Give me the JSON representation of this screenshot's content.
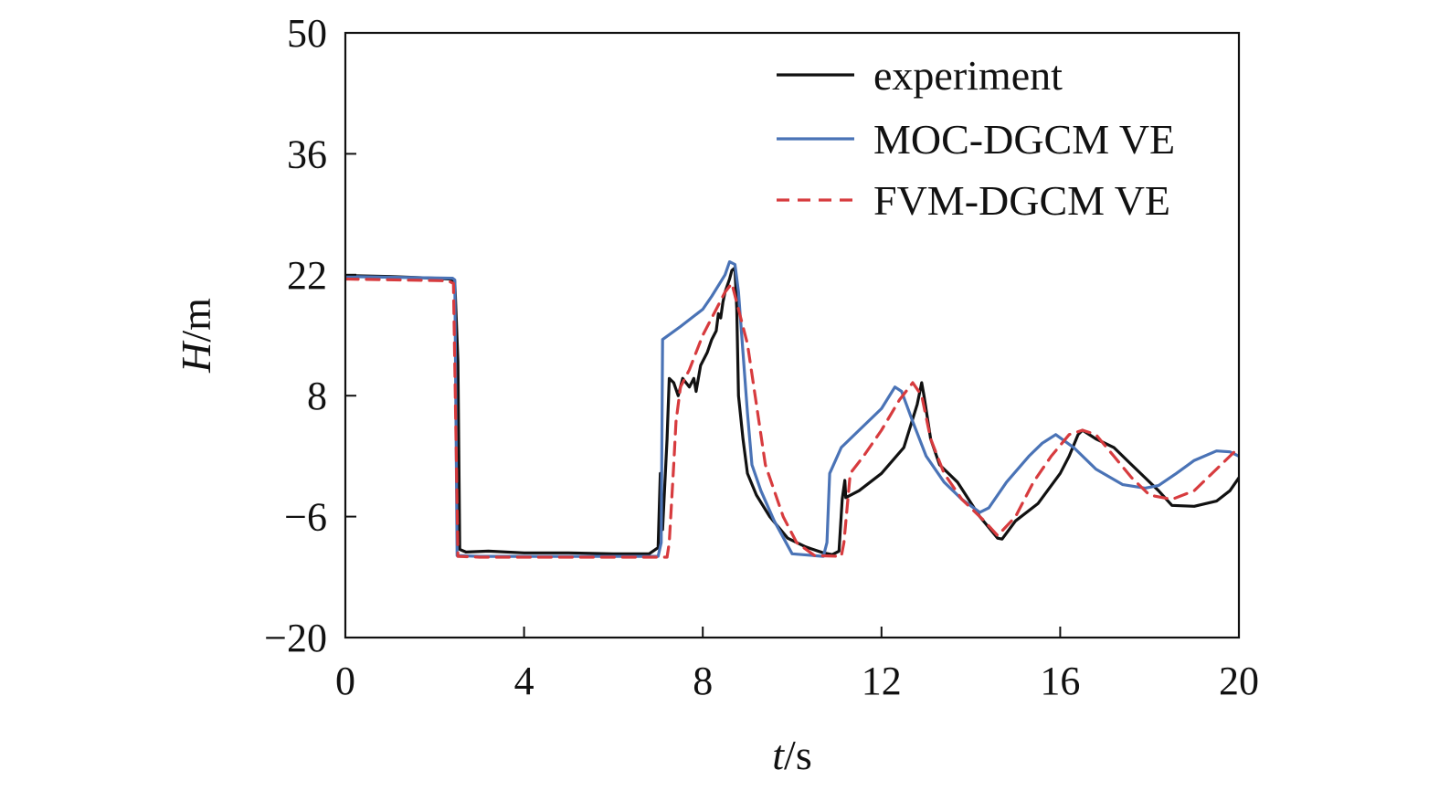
{
  "chart_data": {
    "type": "line",
    "xlabel": {
      "italic": "t",
      "rest": "/s"
    },
    "ylabel": {
      "italic": "H",
      "rest": "/m"
    },
    "xlim": [
      0,
      20
    ],
    "ylim": [
      -20,
      50
    ],
    "xticks": [
      0,
      4,
      8,
      12,
      16,
      20
    ],
    "yticks": [
      -20,
      -6,
      8,
      22,
      36,
      50
    ],
    "xtick_labels": [
      "0",
      "4",
      "8",
      "12",
      "16",
      "20"
    ],
    "ytick_labels": [
      "−20",
      "−6",
      "8",
      "22",
      "36",
      "50"
    ],
    "grid": false,
    "legend": "top-right",
    "series": [
      {
        "name": "experiment",
        "color": "#111111",
        "dash": "solid",
        "points": [
          [
            0,
            21.9
          ],
          [
            1,
            21.8
          ],
          [
            2,
            21.6
          ],
          [
            2.35,
            21.5
          ],
          [
            2.45,
            21.2
          ],
          [
            2.52,
            12
          ],
          [
            2.56,
            -9.8
          ],
          [
            2.7,
            -10.1
          ],
          [
            3.2,
            -10.0
          ],
          [
            4,
            -10.2
          ],
          [
            5,
            -10.2
          ],
          [
            6,
            -10.3
          ],
          [
            6.8,
            -10.3
          ],
          [
            7.0,
            -9.6
          ],
          [
            7.05,
            -1
          ],
          [
            7.1,
            -7.5
          ],
          [
            7.2,
            3
          ],
          [
            7.25,
            10.0
          ],
          [
            7.35,
            9.5
          ],
          [
            7.45,
            8.0
          ],
          [
            7.55,
            10.0
          ],
          [
            7.7,
            9
          ],
          [
            7.8,
            10.0
          ],
          [
            7.85,
            8.5
          ],
          [
            7.95,
            11.5
          ],
          [
            8.1,
            13
          ],
          [
            8.2,
            14.5
          ],
          [
            8.3,
            15.5
          ],
          [
            8.35,
            17.5
          ],
          [
            8.4,
            17
          ],
          [
            8.45,
            18.8
          ],
          [
            8.5,
            20
          ],
          [
            8.6,
            21.5
          ],
          [
            8.65,
            22.5
          ],
          [
            8.72,
            22.8
          ],
          [
            8.76,
            18
          ],
          [
            8.8,
            8
          ],
          [
            8.9,
            3
          ],
          [
            9.0,
            -1
          ],
          [
            9.2,
            -3.5
          ],
          [
            9.5,
            -6
          ],
          [
            9.9,
            -8.5
          ],
          [
            10.3,
            -9.5
          ],
          [
            10.7,
            -10.2
          ],
          [
            10.9,
            -10.4
          ],
          [
            11.05,
            -10.0
          ],
          [
            11.12,
            -4
          ],
          [
            11.18,
            -1.8
          ],
          [
            11.2,
            -3.8
          ],
          [
            11.5,
            -3.0
          ],
          [
            12,
            -1
          ],
          [
            12.5,
            2
          ],
          [
            12.8,
            7
          ],
          [
            12.9,
            9.5
          ],
          [
            12.95,
            8
          ],
          [
            13.1,
            3
          ],
          [
            13.3,
            0
          ],
          [
            13.7,
            -2
          ],
          [
            14.2,
            -6
          ],
          [
            14.6,
            -8.5
          ],
          [
            14.7,
            -8.6
          ],
          [
            15.0,
            -6.5
          ],
          [
            15.5,
            -4.5
          ],
          [
            16,
            -1
          ],
          [
            16.2,
            1
          ],
          [
            16.4,
            3.5
          ],
          [
            16.5,
            4
          ],
          [
            16.8,
            3
          ],
          [
            17.2,
            2
          ],
          [
            17.6,
            0
          ],
          [
            17.9,
            -1.5
          ],
          [
            18.2,
            -3
          ],
          [
            18.5,
            -4.7
          ],
          [
            19,
            -4.8
          ],
          [
            19.5,
            -4.2
          ],
          [
            19.8,
            -3
          ],
          [
            20,
            -1.5
          ]
        ]
      },
      {
        "name": "MOC-DGCM VE",
        "color": "#4a73b6",
        "dash": "solid",
        "points": [
          [
            0,
            21.8
          ],
          [
            2.4,
            21.6
          ],
          [
            2.45,
            21.4
          ],
          [
            2.5,
            -10.5
          ],
          [
            3,
            -10.6
          ],
          [
            6,
            -10.6
          ],
          [
            7.0,
            -10.6
          ],
          [
            7.07,
            -9
          ],
          [
            7.1,
            14.5
          ],
          [
            7.5,
            16
          ],
          [
            8,
            18
          ],
          [
            8.2,
            19.5
          ],
          [
            8.5,
            22
          ],
          [
            8.6,
            23.5
          ],
          [
            8.72,
            23.2
          ],
          [
            8.8,
            20
          ],
          [
            8.9,
            13
          ],
          [
            9.0,
            6
          ],
          [
            9.1,
            0
          ],
          [
            9.3,
            -3
          ],
          [
            9.6,
            -6.5
          ],
          [
            10.0,
            -10.3
          ],
          [
            10.7,
            -10.6
          ],
          [
            10.78,
            -9
          ],
          [
            10.84,
            -1
          ],
          [
            11.1,
            2
          ],
          [
            11.5,
            4
          ],
          [
            12,
            6.5
          ],
          [
            12.3,
            9
          ],
          [
            12.45,
            8.5
          ],
          [
            12.7,
            5
          ],
          [
            13.0,
            1
          ],
          [
            13.4,
            -2
          ],
          [
            13.8,
            -4
          ],
          [
            14.2,
            -5.5
          ],
          [
            14.4,
            -5
          ],
          [
            14.8,
            -2
          ],
          [
            15.3,
            1
          ],
          [
            15.6,
            2.5
          ],
          [
            15.9,
            3.5
          ],
          [
            16.3,
            2
          ],
          [
            16.8,
            -0.5
          ],
          [
            17.4,
            -2.3
          ],
          [
            17.9,
            -2.7
          ],
          [
            18.2,
            -2.4
          ],
          [
            18.6,
            -1
          ],
          [
            19,
            0.5
          ],
          [
            19.5,
            1.6
          ],
          [
            19.8,
            1.5
          ],
          [
            20,
            1
          ]
        ]
      },
      {
        "name": "FVM-DGCM VE",
        "color": "#d73b3e",
        "dash": "dashed",
        "points": [
          [
            0,
            21.5
          ],
          [
            2.3,
            21.3
          ],
          [
            2.42,
            21.0
          ],
          [
            2.52,
            -10.6
          ],
          [
            3,
            -10.7
          ],
          [
            6,
            -10.7
          ],
          [
            7.2,
            -10.7
          ],
          [
            7.25,
            -9
          ],
          [
            7.35,
            0
          ],
          [
            7.4,
            5
          ],
          [
            7.5,
            9
          ],
          [
            7.7,
            11
          ],
          [
            8.0,
            15
          ],
          [
            8.3,
            18
          ],
          [
            8.5,
            20
          ],
          [
            8.65,
            21
          ],
          [
            8.8,
            18
          ],
          [
            9.0,
            14
          ],
          [
            9.2,
            7
          ],
          [
            9.4,
            0
          ],
          [
            9.6,
            -3
          ],
          [
            9.8,
            -6
          ],
          [
            10.1,
            -9
          ],
          [
            10.5,
            -10.5
          ],
          [
            11.1,
            -10.6
          ],
          [
            11.16,
            -9
          ],
          [
            11.3,
            -1
          ],
          [
            11.6,
            1
          ],
          [
            12,
            4
          ],
          [
            12.4,
            7.5
          ],
          [
            12.7,
            9.5
          ],
          [
            12.9,
            8
          ],
          [
            13.1,
            3
          ],
          [
            13.4,
            -1
          ],
          [
            13.8,
            -4
          ],
          [
            14.3,
            -6.5
          ],
          [
            14.6,
            -8.2
          ],
          [
            15.0,
            -6
          ],
          [
            15.4,
            -2
          ],
          [
            15.8,
            1
          ],
          [
            16.2,
            3.5
          ],
          [
            16.5,
            4
          ],
          [
            16.8,
            3.5
          ],
          [
            17.2,
            1
          ],
          [
            17.6,
            -1.5
          ],
          [
            18.0,
            -3.5
          ],
          [
            18.5,
            -4
          ],
          [
            19.0,
            -3
          ],
          [
            19.5,
            -0.5
          ],
          [
            20,
            2
          ]
        ]
      }
    ]
  }
}
